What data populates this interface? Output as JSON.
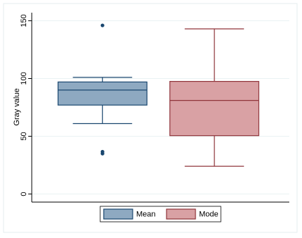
{
  "chart_data": {
    "type": "box",
    "y_label": "Gray value",
    "ylim": [
      -7,
      157
    ],
    "yticks": [
      0,
      50,
      100,
      150
    ],
    "grid": true,
    "legend": "bottom",
    "series": [
      {
        "name": "Mean",
        "color": "#8ea9c1",
        "edge_color": "#1a476f",
        "whisker_low": 61,
        "q1": 77,
        "median": 90,
        "q3": 97,
        "whisker_high": 101,
        "outliers": [
          146,
          36.6,
          35
        ]
      },
      {
        "name": "Mode",
        "color": "#d9a1a4",
        "edge_color": "#90353b",
        "whisker_low": 24,
        "q1": 50.5,
        "median": 81,
        "q3": 97.5,
        "whisker_high": 143,
        "outliers": []
      }
    ]
  }
}
